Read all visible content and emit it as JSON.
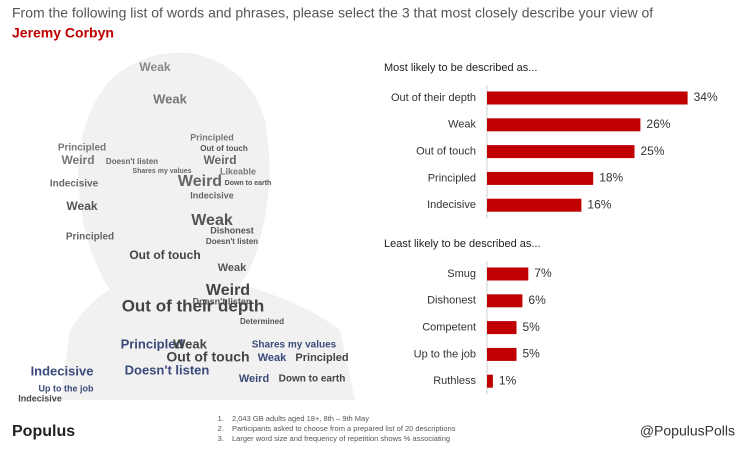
{
  "header": {
    "title": "From the following list of words and phrases, please select the 3 that most closely describe your view of",
    "subject": "Jeremy Corbyn"
  },
  "chart_data": [
    {
      "type": "hbar",
      "title": "Most likely to be described as...",
      "color": "#c00000",
      "categories": [
        "Out of their depth",
        "Weak",
        "Out of touch",
        "Principled",
        "Indecisive"
      ],
      "values": [
        34,
        26,
        25,
        18,
        16
      ],
      "value_labels": [
        "34%",
        "26%",
        "25%",
        "18%",
        "16%"
      ]
    },
    {
      "type": "hbar",
      "title": "Least likely to be described as...",
      "color": "#c00000",
      "categories": [
        "Smug",
        "Dishonest",
        "Competent",
        "Up to the job",
        "Ruthless"
      ],
      "values": [
        7,
        6,
        5,
        5,
        1
      ],
      "value_labels": [
        "7%",
        "6%",
        "5%",
        "5%",
        "1%"
      ]
    }
  ],
  "word_cloud": {
    "words": [
      "Weak",
      "Weak",
      "Principled",
      "Doesn't listen",
      "Weird",
      "Principled",
      "Out of touch",
      "Weird",
      "Likeable",
      "Shares my values",
      "Indecisive",
      "Weird",
      "Down to earth",
      "Indecisive",
      "Weak",
      "Weak",
      "Principled",
      "Dishonest",
      "Doesn't listen",
      "Out of touch",
      "Weak",
      "Weird",
      "Doesn't listen",
      "Determined",
      "Out of their depth",
      "Principled",
      "Weak",
      "Out of touch",
      "Shares my values",
      "Weak",
      "Principled",
      "Indecisive",
      "Doesn't listen",
      "Weird",
      "Down to earth",
      "Up to the job",
      "Indecisive"
    ]
  },
  "footer": {
    "brand": "Populus",
    "notes": [
      "2,043 GB adults aged 18+, 8th – 9th May",
      "Participants asked to choose from a prepared list of 20 descriptions",
      "Larger word size and frequency of repetition shows % associating"
    ],
    "handle": "@PopulusPolls"
  }
}
